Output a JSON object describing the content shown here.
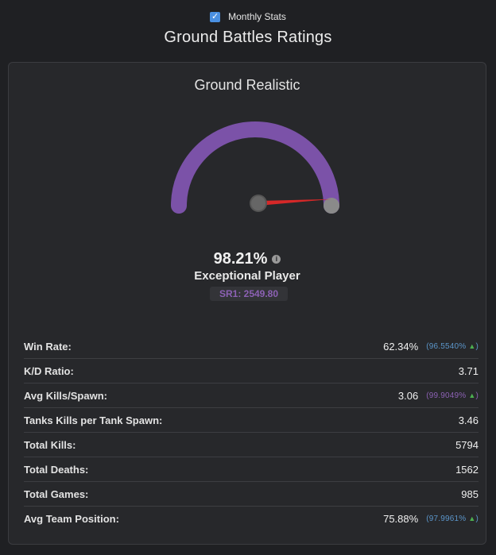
{
  "header": {
    "monthly_toggle_label": "Monthly Stats",
    "monthly_toggle_checked": true,
    "title": "Ground Battles Ratings"
  },
  "card": {
    "mode_title": "Ground Realistic",
    "gauge": {
      "value_percent": 98.21,
      "arc_color": "#7b52a8",
      "needle_color": "#d62828"
    },
    "percent_text": "98.21%",
    "rank_label": "Exceptional Player",
    "sr_badge": "SR1: 2549.80"
  },
  "stats": [
    {
      "label": "Win Rate:",
      "value": "62.34%",
      "sub": "(96.5540%",
      "sub_color": "blue",
      "trend": "up"
    },
    {
      "label": "K/D Ratio:",
      "value": "3.71"
    },
    {
      "label": "Avg Kills/Spawn:",
      "value": "3.06",
      "sub": "(99.9049%",
      "sub_color": "purple",
      "trend": "up"
    },
    {
      "label": "Tanks Kills per Tank Spawn:",
      "value": "3.46"
    },
    {
      "label": "Total Kills:",
      "value": "5794"
    },
    {
      "label": "Total Deaths:",
      "value": "1562"
    },
    {
      "label": "Total Games:",
      "value": "985"
    },
    {
      "label": "Avg Team Position:",
      "value": "75.88%",
      "sub": "(97.9961%",
      "sub_color": "blue",
      "trend": "up"
    }
  ],
  "trend_symbol": "▲",
  "trend_close": ")"
}
